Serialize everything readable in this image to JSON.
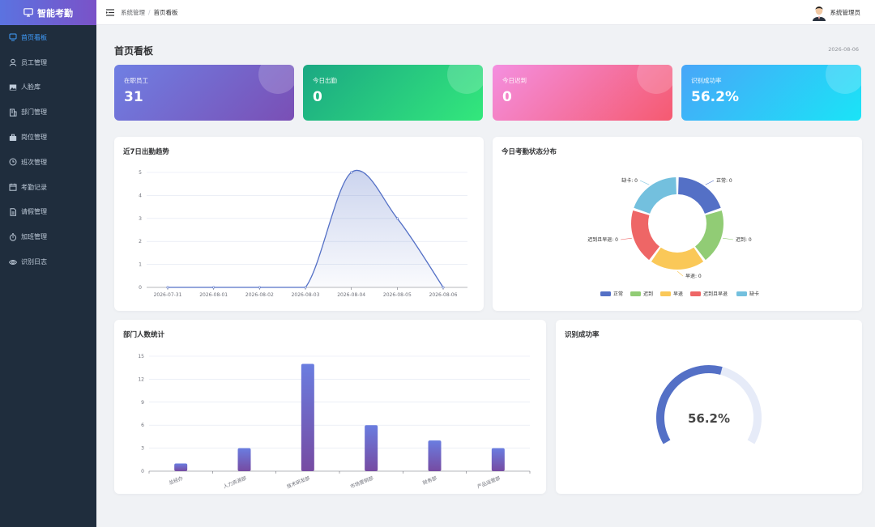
{
  "brand": {
    "title": "智能考勤",
    "icon": "monitor-icon"
  },
  "sidebar": {
    "items": [
      {
        "label": "首页看板",
        "icon": "dashboard-icon",
        "active": true
      },
      {
        "label": "员工管理",
        "icon": "user-icon"
      },
      {
        "label": "人脸库",
        "icon": "image-icon"
      },
      {
        "label": "部门管理",
        "icon": "building-icon"
      },
      {
        "label": "岗位管理",
        "icon": "briefcase-icon"
      },
      {
        "label": "班次管理",
        "icon": "clock-icon"
      },
      {
        "label": "考勤记录",
        "icon": "calendar-icon"
      },
      {
        "label": "请假管理",
        "icon": "document-icon"
      },
      {
        "label": "加班管理",
        "icon": "timer-icon"
      },
      {
        "label": "识别日志",
        "icon": "eye-icon"
      }
    ]
  },
  "header": {
    "breadcrumb": [
      "系统管理",
      "首页看板"
    ],
    "separator": "/",
    "user": "系统管理员"
  },
  "page": {
    "title": "首页看板",
    "date": "2026-08-06"
  },
  "stats": [
    {
      "label": "在职员工",
      "value": "31"
    },
    {
      "label": "今日出勤",
      "value": "0"
    },
    {
      "label": "今日迟到",
      "value": "0"
    },
    {
      "label": "识别成功率",
      "value": "56.2%"
    }
  ],
  "panels": {
    "trend_title": "近7日出勤趋势",
    "status_title": "今日考勤状态分布",
    "dept_title": "部门人数统计",
    "rate_title": "识别成功率"
  },
  "colors": {
    "line": "#5470c6",
    "bar_top": "#6a7de0",
    "bar_bottom": "#764ba2",
    "gauge": "#5470c6",
    "gauge_track": "#e6ebf8"
  },
  "chart_data": [
    {
      "type": "line",
      "x": [
        "2026-07-31",
        "2026-08-01",
        "2026-08-02",
        "2026-08-03",
        "2026-08-04",
        "2026-08-05",
        "2026-08-06"
      ],
      "values": [
        0,
        0,
        0,
        0,
        5,
        3,
        0
      ],
      "ylim": [
        0,
        5
      ],
      "yticks": [
        0,
        1,
        2,
        3,
        4,
        5
      ],
      "smooth": true,
      "area": true,
      "grid": true
    },
    {
      "type": "pie",
      "donut": true,
      "slices": [
        {
          "label": "正常",
          "value": 0,
          "display": "正常: 0",
          "color": "#5470c6"
        },
        {
          "label": "迟到",
          "value": 0,
          "display": "迟到: 0",
          "color": "#91cc75"
        },
        {
          "label": "早退",
          "value": 0,
          "display": "早退: 0",
          "color": "#fac858"
        },
        {
          "label": "迟到且早退",
          "value": 0,
          "display": "迟到且早退: 0",
          "color": "#ee6666"
        },
        {
          "label": "缺卡",
          "value": 0,
          "display": "缺卡: 0",
          "color": "#73c0de"
        }
      ],
      "legend": "bottom"
    },
    {
      "type": "bar",
      "categories": [
        "总经办",
        "人力资源部",
        "技术研发部",
        "市场营销部",
        "财务部",
        "产品运营部"
      ],
      "values": [
        1,
        3,
        14,
        6,
        4,
        3
      ],
      "ylim": [
        0,
        15
      ],
      "yticks": [
        0,
        3,
        6,
        9,
        12,
        15
      ],
      "grid": true
    },
    {
      "type": "gauge",
      "value": 56.2,
      "max": 100,
      "label": "56.2%"
    }
  ]
}
